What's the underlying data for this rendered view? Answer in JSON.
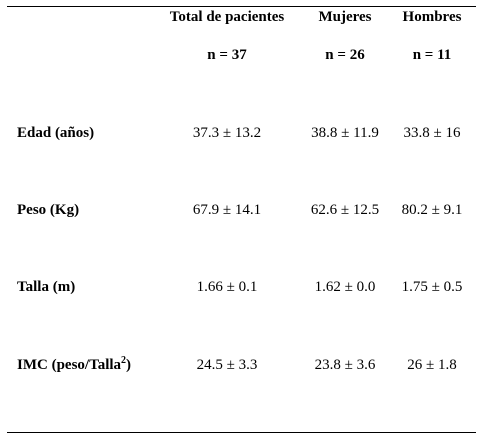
{
  "table": {
    "columns": [
      {
        "header": "Total de pacientes",
        "n": "n = 37"
      },
      {
        "header": "Mujeres",
        "n": "n = 26"
      },
      {
        "header": "Hombres",
        "n": "n = 11"
      }
    ],
    "rows": [
      {
        "label": "Edad (años)",
        "values": [
          "37.3 ± 13.2",
          "38.8 ± 11.9",
          "33.8 ± 16"
        ]
      },
      {
        "label": "Peso (Kg)",
        "values": [
          "67.9 ± 14.1",
          "62.6 ± 12.5",
          "80.2 ± 9.1"
        ]
      },
      {
        "label": "Talla (m)",
        "values": [
          "1.66 ± 0.1",
          "1.62 ± 0.0",
          "1.75 ± 0.5"
        ]
      },
      {
        "label_prefix": "IMC (peso/Talla",
        "label_sup": "2",
        "label_suffix": ")",
        "values": [
          "24.5 ± 3.3",
          "23.8 ± 3.6",
          "26 ± 1.8"
        ]
      }
    ]
  }
}
